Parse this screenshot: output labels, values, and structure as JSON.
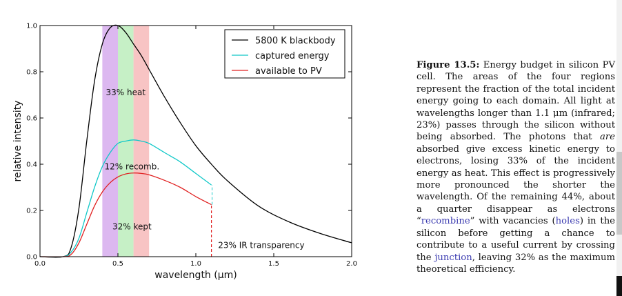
{
  "chart_data": {
    "type": "line",
    "xlabel": "wavelength (μm)",
    "ylabel": "relative intensity",
    "xlim": [
      0.0,
      2.0
    ],
    "ylim": [
      0.0,
      1.0
    ],
    "xticks": [
      0.0,
      0.5,
      1.0,
      1.5,
      2.0
    ],
    "xtick_labels": [
      "0.0",
      "0.5",
      "1.0",
      "1.5",
      "2.0"
    ],
    "yticks": [
      0.0,
      0.2,
      0.4,
      0.6,
      0.8,
      1.0
    ],
    "ytick_labels": [
      "0.0",
      "0.2",
      "0.4",
      "0.6",
      "0.8",
      "1.0"
    ],
    "grid": false,
    "legend_position": "top-right",
    "bands": [
      {
        "x0": 0.4,
        "x1": 0.5,
        "color": "#dcb8f0"
      },
      {
        "x0": 0.5,
        "x1": 0.6,
        "color": "#c6f0c6"
      },
      {
        "x0": 0.6,
        "x1": 0.7,
        "color": "#f8c4c4"
      }
    ],
    "series": [
      {
        "name": "5800 K blackbody",
        "color": "#000000",
        "x": [
          0.15,
          0.2,
          0.25,
          0.3,
          0.35,
          0.4,
          0.45,
          0.5,
          0.55,
          0.6,
          0.65,
          0.7,
          0.8,
          0.9,
          1.0,
          1.1,
          1.2,
          1.4,
          1.6,
          1.8,
          2.0
        ],
        "y": [
          0.0,
          0.04,
          0.21,
          0.5,
          0.76,
          0.92,
          0.99,
          1.0,
          0.97,
          0.92,
          0.87,
          0.81,
          0.69,
          0.58,
          0.48,
          0.4,
          0.33,
          0.22,
          0.15,
          0.1,
          0.06
        ]
      },
      {
        "name": "captured energy",
        "color": "#10c8c8",
        "x": [
          0.15,
          0.2,
          0.25,
          0.3,
          0.35,
          0.4,
          0.45,
          0.5,
          0.55,
          0.6,
          0.65,
          0.7,
          0.8,
          0.9,
          1.0,
          1.1
        ],
        "y": [
          0.0,
          0.02,
          0.08,
          0.19,
          0.3,
          0.39,
          0.45,
          0.49,
          0.5,
          0.505,
          0.5,
          0.49,
          0.45,
          0.41,
          0.36,
          0.31
        ]
      },
      {
        "name": "available to PV",
        "color": "#e02020",
        "x": [
          0.15,
          0.2,
          0.25,
          0.3,
          0.35,
          0.4,
          0.45,
          0.5,
          0.55,
          0.6,
          0.65,
          0.7,
          0.8,
          0.9,
          1.0,
          1.1
        ],
        "y": [
          0.0,
          0.01,
          0.06,
          0.14,
          0.22,
          0.28,
          0.32,
          0.345,
          0.358,
          0.362,
          0.36,
          0.354,
          0.33,
          0.3,
          0.26,
          0.225
        ]
      }
    ],
    "annotations": [
      {
        "text": "33% heat",
        "x": 0.55,
        "y": 0.71
      },
      {
        "text": "12% recomb.",
        "x": 0.59,
        "y": 0.39
      },
      {
        "text": "32% kept",
        "x": 0.59,
        "y": 0.13
      },
      {
        "text": "23% IR transparency",
        "x": 1.42,
        "y": 0.05
      }
    ],
    "cutoff_x": 1.1
  },
  "caption": {
    "label": "Figure 13.5:",
    "part1": " Energy budget in silicon PV cell. The areas of the four regions represent the fraction of the total incident energy going to each domain. All light at wavelengths longer than 1.1 μm (infrared; 23%) passes through the silicon without being absorbed. The photons that ",
    "emph": "are",
    "part2": " absorbed give excess kinetic energy to electrons, losing 33% of the incident energy as heat. This effect is progressively more pronounced the shorter the wavelength. Of the remaining 44%, about a quarter disappear as electrons “",
    "link1": "recombine",
    "part3": "” with vacancies (",
    "link2": "holes",
    "part4": ") in the silicon before getting a chance to contribute to a useful current by crossing the ",
    "link3": "junction",
    "part5": ", leaving 32% as the maximum theoretical efficiency."
  },
  "colors": {
    "scroll_thumb": "#c8c8c8",
    "scroll_mark": "#111111"
  }
}
